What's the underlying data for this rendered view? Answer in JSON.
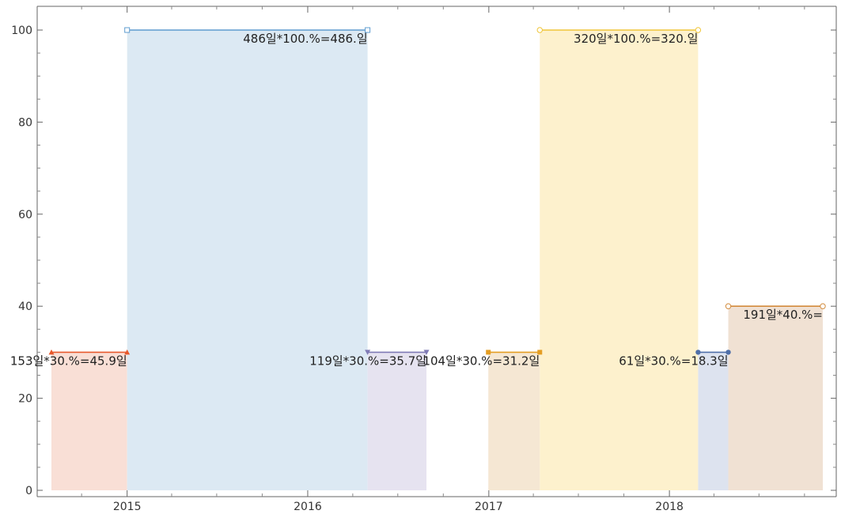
{
  "chart_data": {
    "type": "area",
    "title": "",
    "xlabel": "",
    "ylabel": "",
    "x_axis": {
      "type": "date",
      "range": [
        "2014-08-01",
        "2018-12-01"
      ],
      "ticks": [
        "2015",
        "2016",
        "2017",
        "2018"
      ]
    },
    "y_axis": {
      "range": [
        0,
        103
      ],
      "ticks": [
        "0",
        "20",
        "40",
        "60",
        "80",
        "100"
      ]
    },
    "grid": false,
    "legend": "none",
    "series": [
      {
        "start": "2014-08-01",
        "end": "2015-01-01",
        "value": 30,
        "label": "153일*30.%=45.9일",
        "color": "#e8592c",
        "fill": "#f9dfd6",
        "marker": "triangle-up"
      },
      {
        "start": "2015-01-01",
        "end": "2016-05-01",
        "value": 100,
        "label": "486일*100.%=486.일",
        "color": "#5e9ccf",
        "fill": "#dce9f3",
        "marker": "square-open"
      },
      {
        "start": "2016-05-01",
        "end": "2016-08-28",
        "value": 30,
        "label": "119일*30.%=35.7일",
        "color": "#7f7ab5",
        "fill": "#e6e3f0",
        "marker": "triangle-down"
      },
      {
        "start": "2016-12-31",
        "end": "2017-04-14",
        "value": 30,
        "label": "104일*30.%=31.2일",
        "color": "#e49d22",
        "fill": "#f5e7d3",
        "marker": "square"
      },
      {
        "start": "2017-04-14",
        "end": "2018-02-28",
        "value": 100,
        "label": "320일*100.%=320.일",
        "color": "#f0c63a",
        "fill": "#fdf1cd",
        "marker": "circle-open"
      },
      {
        "start": "2018-02-28",
        "end": "2018-04-30",
        "value": 30,
        "label": "61일*30.%=18.3일",
        "color": "#4f6fa8",
        "fill": "#dde3ef",
        "marker": "circle"
      },
      {
        "start": "2018-04-30",
        "end": "2018-11-07",
        "value": 40,
        "label": "191일*40.%=",
        "color": "#d28a3b",
        "fill": "#f0e1d3",
        "marker": "circle-open"
      }
    ]
  }
}
